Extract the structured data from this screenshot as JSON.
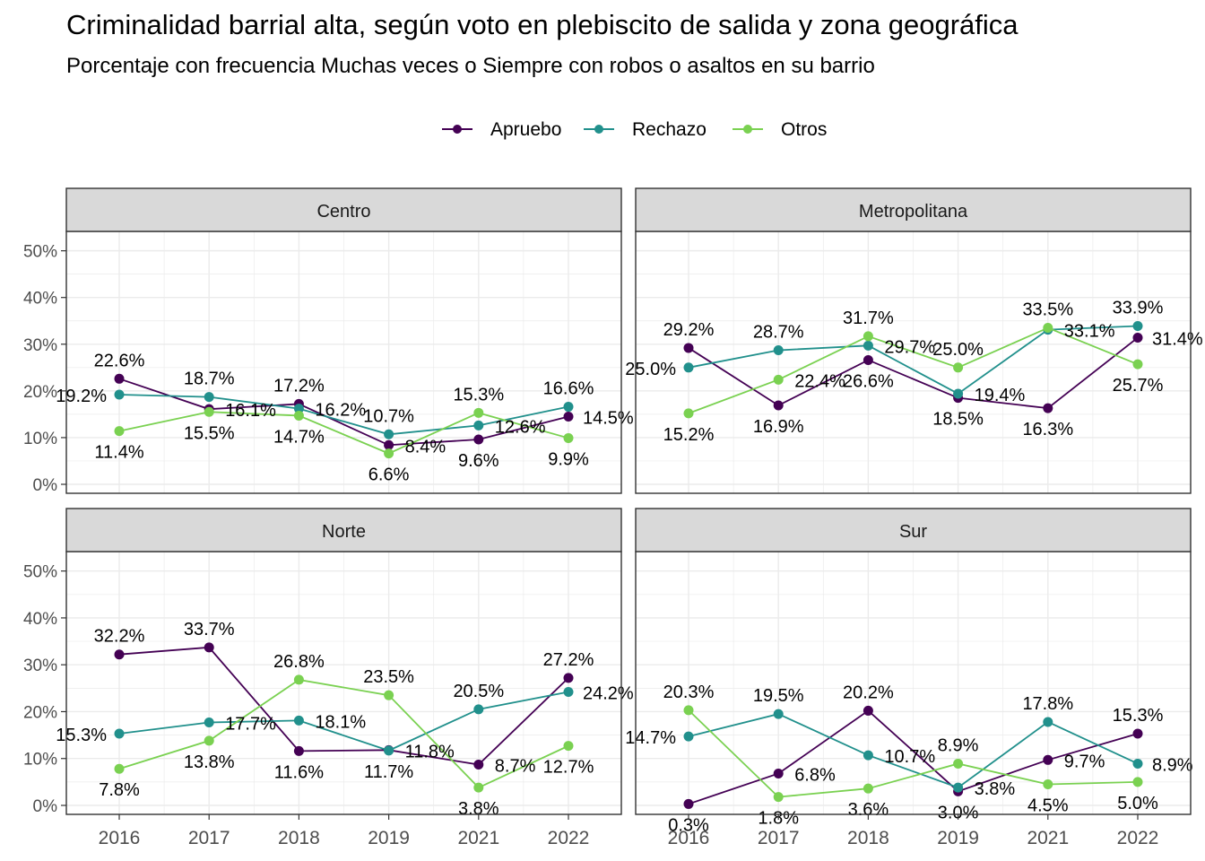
{
  "chart_data": {
    "type": "line",
    "title": "Criminalidad barrial alta, según voto en plebiscito de salida y zona geográfica",
    "subtitle": "Porcentaje con frecuencia Muchas veces o Siempre con robos o asaltos en su barrio",
    "x": [
      "2016",
      "2017",
      "2018",
      "2019",
      "2021",
      "2022"
    ],
    "ylim": [
      0,
      50
    ],
    "yticks": [
      "0%",
      "10%",
      "20%",
      "30%",
      "40%",
      "50%"
    ],
    "grid": true,
    "legend": "top",
    "series_meta": [
      {
        "name": "Apruebo",
        "color": "#440154"
      },
      {
        "name": "Rechazo",
        "color": "#21908C"
      },
      {
        "name": "Otros",
        "color": "#7AD151"
      }
    ],
    "panels": [
      {
        "name": "Centro",
        "series": [
          {
            "name": "Apruebo",
            "values": [
              22.6,
              16.1,
              17.2,
              8.4,
              9.6,
              14.5
            ]
          },
          {
            "name": "Rechazo",
            "values": [
              19.2,
              18.7,
              16.2,
              10.7,
              12.6,
              16.6
            ]
          },
          {
            "name": "Otros",
            "values": [
              11.4,
              15.5,
              14.7,
              6.6,
              15.3,
              9.9
            ]
          }
        ]
      },
      {
        "name": "Metropolitana",
        "series": [
          {
            "name": "Apruebo",
            "values": [
              29.2,
              16.9,
              26.6,
              18.5,
              16.3,
              31.4
            ]
          },
          {
            "name": "Rechazo",
            "values": [
              25.0,
              28.7,
              29.7,
              19.4,
              33.1,
              33.9
            ]
          },
          {
            "name": "Otros",
            "values": [
              15.2,
              22.4,
              31.7,
              25.0,
              33.5,
              25.7
            ]
          }
        ]
      },
      {
        "name": "Norte",
        "series": [
          {
            "name": "Apruebo",
            "values": [
              32.2,
              33.7,
              11.6,
              11.8,
              8.7,
              27.2
            ]
          },
          {
            "name": "Rechazo",
            "values": [
              15.3,
              17.7,
              18.1,
              11.7,
              20.5,
              24.2
            ]
          },
          {
            "name": "Otros",
            "values": [
              7.8,
              13.8,
              26.8,
              23.5,
              3.8,
              12.7
            ]
          }
        ]
      },
      {
        "name": "Sur",
        "series": [
          {
            "name": "Apruebo",
            "values": [
              0.3,
              6.8,
              20.2,
              3.0,
              9.7,
              15.3
            ]
          },
          {
            "name": "Rechazo",
            "values": [
              14.7,
              19.5,
              10.7,
              3.8,
              17.8,
              8.9
            ]
          },
          {
            "name": "Otros",
            "values": [
              20.3,
              1.8,
              3.6,
              8.9,
              4.5,
              5.0
            ]
          }
        ]
      }
    ]
  }
}
